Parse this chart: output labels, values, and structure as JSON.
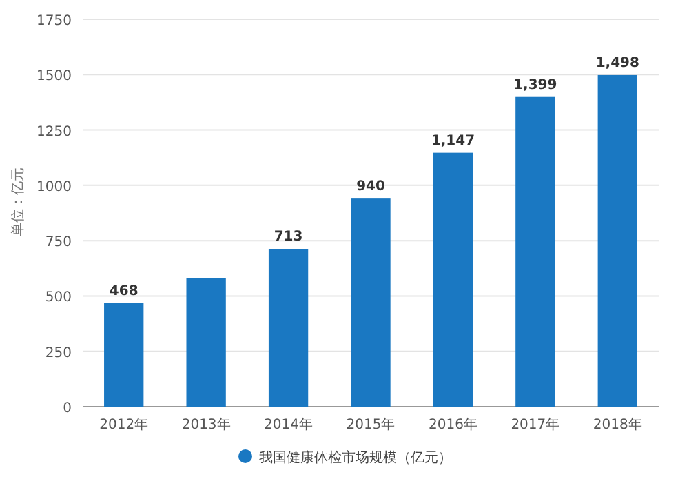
{
  "chart_data": {
    "type": "bar",
    "ylabel": "单位：亿元",
    "categories": [
      "2012年",
      "2013年",
      "2014年",
      "2015年",
      "2016年",
      "2017年",
      "2018年"
    ],
    "series": [
      {
        "name": "我国健康体检市场规模（亿元）",
        "color": "#1a78c2",
        "values": [
          468,
          580,
          713,
          940,
          1147,
          1399,
          1498
        ]
      }
    ],
    "value_labels": [
      "468",
      null,
      "713",
      "940",
      "1,147",
      "1,399",
      "1,498"
    ],
    "ylim": [
      0,
      1750
    ],
    "yticks": [
      0,
      250,
      500,
      750,
      1000,
      1250,
      1500,
      1750
    ],
    "grid": "y",
    "legend": "bottom"
  }
}
